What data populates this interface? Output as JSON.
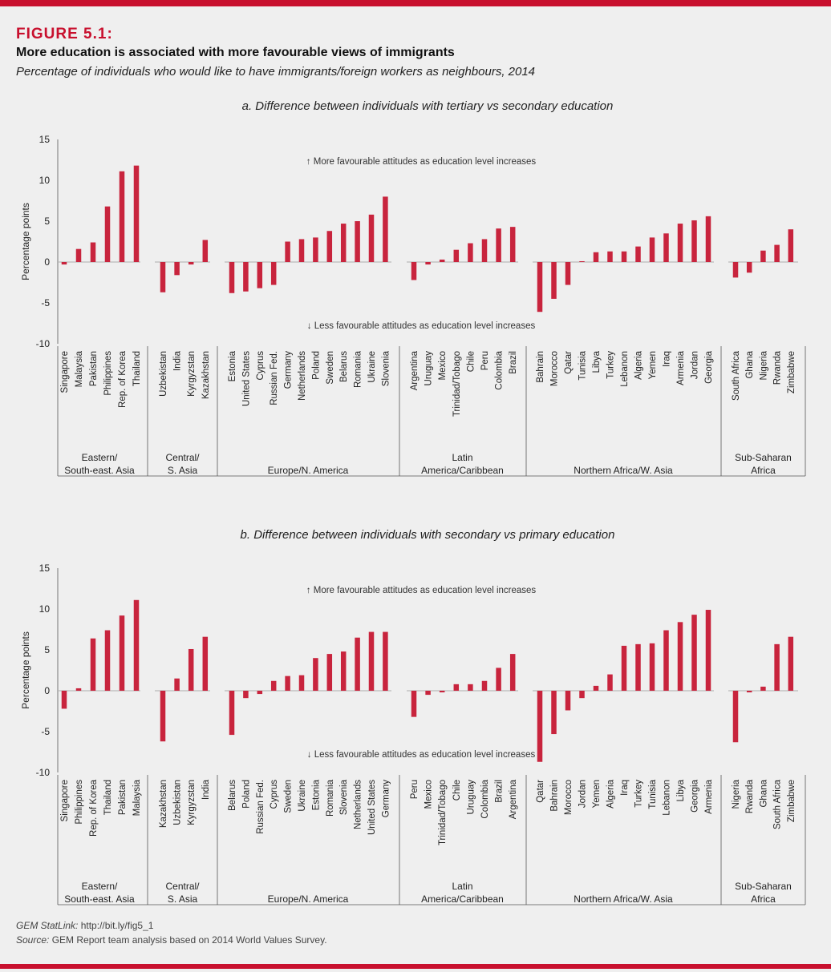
{
  "figure": {
    "label": "FIGURE 5.1:",
    "title": "More education is associated with more favourable views of immigrants",
    "subtitle": "Percentage of individuals who would like to have immigrants/foreign workers as neighbours, 2014"
  },
  "footer": {
    "statlink_label": "GEM StatLink:",
    "statlink_url": "http://bit.ly/fig5_1",
    "source_label": "Source:",
    "source_text": "GEM Report team analysis based on 2014 World Values Survey."
  },
  "colors": {
    "bar": "#c8243d",
    "accent": "#c8102e"
  },
  "chart_data": [
    {
      "type": "bar",
      "title": "a. Difference between individuals with tertiary vs secondary education",
      "ylabel": "Percentage points",
      "ylim": [
        -10,
        15
      ],
      "yticks": [
        -10,
        -5,
        0,
        5,
        10,
        15
      ],
      "annotation_up": "↑ More favourable attitudes as education level increases",
      "annotation_down": "↓ Less favourable attitudes as education level increases",
      "groups": [
        {
          "region": [
            "Eastern/",
            "South-east. Asia"
          ],
          "categories": [
            "Singapore",
            "Malaysia",
            "Pakistan",
            "Philippines",
            "Rep. of Korea",
            "Thailand"
          ],
          "values": [
            -0.3,
            1.6,
            2.4,
            6.8,
            11.1,
            11.8
          ]
        },
        {
          "region": [
            "Central/",
            "S. Asia"
          ],
          "categories": [
            "Uzbekistan",
            "India",
            "Kyrgyzstan",
            "Kazakhstan"
          ],
          "values": [
            -3.7,
            -1.6,
            -0.3,
            2.7
          ]
        },
        {
          "region": [
            "Europe/N. America"
          ],
          "categories": [
            "Estonia",
            "United States",
            "Cyprus",
            "Russian Fed.",
            "Germany",
            "Netherlands",
            "Poland",
            "Sweden",
            "Belarus",
            "Romania",
            "Ukraine",
            "Slovenia"
          ],
          "values": [
            -3.8,
            -3.6,
            -3.2,
            -2.8,
            2.5,
            2.8,
            3.0,
            3.8,
            4.7,
            5.0,
            5.8,
            8.0
          ]
        },
        {
          "region": [
            "Latin",
            "America/Caribbean"
          ],
          "categories": [
            "Argentina",
            "Uruguay",
            "Mexico",
            "Trinidad/Tobago",
            "Chile",
            "Peru",
            "Colombia",
            "Brazil"
          ],
          "values": [
            -2.2,
            -0.3,
            0.3,
            1.5,
            2.3,
            2.8,
            4.1,
            4.3
          ]
        },
        {
          "region": [
            "Northern Africa/W. Asia"
          ],
          "categories": [
            "Bahrain",
            "Morocco",
            "Qatar",
            "Tunisia",
            "Libya",
            "Turkey",
            "Lebanon",
            "Algeria",
            "Yemen",
            "Iraq",
            "Armenia",
            "Jordan",
            "Georgia"
          ],
          "values": [
            -6.1,
            -4.5,
            -2.8,
            0.1,
            1.2,
            1.3,
            1.3,
            1.9,
            3.0,
            3.5,
            4.7,
            5.1,
            5.6
          ]
        },
        {
          "region": [
            "Sub-Saharan",
            "Africa"
          ],
          "categories": [
            "South Africa",
            "Ghana",
            "Nigeria",
            "Rwanda",
            "Zimbabwe"
          ],
          "values": [
            -1.9,
            -1.3,
            1.4,
            2.1,
            4.0
          ]
        }
      ]
    },
    {
      "type": "bar",
      "title": "b. Difference between individuals with secondary vs primary education",
      "ylabel": "Percentage points",
      "ylim": [
        -10,
        15
      ],
      "yticks": [
        -10,
        -5,
        0,
        5,
        10,
        15
      ],
      "annotation_up": "↑ More favourable attitudes as education level increases",
      "annotation_down": "↓ Less favourable attitudes as education level increases",
      "groups": [
        {
          "region": [
            "Eastern/",
            "South-east. Asia"
          ],
          "categories": [
            "Singapore",
            "Philippines",
            "Rep. of Korea",
            "Thailand",
            "Pakistan",
            "Malaysia"
          ],
          "values": [
            -2.2,
            0.3,
            6.4,
            7.4,
            9.2,
            11.1
          ]
        },
        {
          "region": [
            "Central/",
            "S. Asia"
          ],
          "categories": [
            "Kazakhstan",
            "Uzbekistan",
            "Kyrgyzstan",
            "India"
          ],
          "values": [
            -6.2,
            1.5,
            5.1,
            6.6
          ]
        },
        {
          "region": [
            "Europe/N. America"
          ],
          "categories": [
            "Belarus",
            "Poland",
            "Russian Fed.",
            "Cyprus",
            "Sweden",
            "Ukraine",
            "Estonia",
            "Romania",
            "Slovenia",
            "Netherlands",
            "United States",
            "Germany"
          ],
          "values": [
            -5.4,
            -0.9,
            -0.4,
            1.2,
            1.8,
            1.9,
            4.0,
            4.5,
            4.8,
            6.5,
            7.2,
            7.2
          ]
        },
        {
          "region": [
            "Latin",
            "America/Caribbean"
          ],
          "categories": [
            "Peru",
            "Mexico",
            "Trinidad/Tobago",
            "Chile",
            "Uruguay",
            "Colombia",
            "Brazil",
            "Argentina"
          ],
          "values": [
            -3.2,
            -0.5,
            -0.2,
            0.8,
            0.8,
            1.2,
            2.8,
            4.5
          ]
        },
        {
          "region": [
            "Northern Africa/W. Asia"
          ],
          "categories": [
            "Qatar",
            "Bahrain",
            "Morocco",
            "Jordan",
            "Yemen",
            "Algeria",
            "Iraq",
            "Turkey",
            "Tunisia",
            "Lebanon",
            "Libya",
            "Georgia",
            "Armenia"
          ],
          "values": [
            -8.7,
            -5.3,
            -2.4,
            -0.9,
            0.6,
            2.0,
            5.5,
            5.7,
            5.8,
            7.4,
            8.4,
            9.3,
            9.9
          ]
        },
        {
          "region": [
            "Sub-Saharan",
            "Africa"
          ],
          "categories": [
            "Nigeria",
            "Rwanda",
            "Ghana",
            "South Africa",
            "Zimbabwe"
          ],
          "values": [
            -6.3,
            -0.2,
            0.5,
            5.7,
            6.6
          ]
        }
      ]
    }
  ]
}
